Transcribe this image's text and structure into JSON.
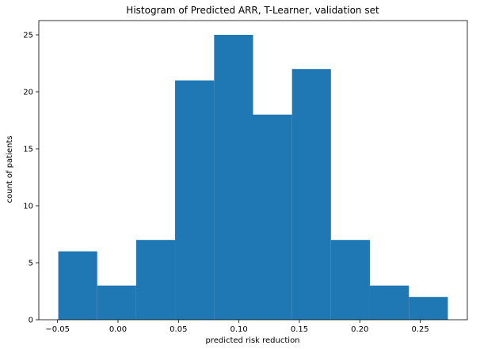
{
  "chart_data": {
    "type": "bar",
    "title": "Histogram of Predicted ARR, T-Learner, validation set",
    "xlabel": "predicted risk reduction",
    "ylabel": "count of patients",
    "bin_edges": [
      -0.0494,
      -0.0172,
      0.015,
      0.0472,
      0.0795,
      0.1117,
      0.1439,
      0.1761,
      0.2083,
      0.2406,
      0.2728
    ],
    "values": [
      6,
      3,
      7,
      21,
      25,
      18,
      22,
      7,
      3,
      2
    ],
    "xlim": [
      -0.0655,
      0.2889
    ],
    "ylim": [
      0,
      26.25
    ],
    "x_ticks": [
      -0.05,
      0.0,
      0.05,
      0.1,
      0.15,
      0.2,
      0.25
    ],
    "x_tick_labels": [
      "−0.05",
      "0.00",
      "0.05",
      "0.10",
      "0.15",
      "0.20",
      "0.25"
    ],
    "y_ticks": [
      0,
      5,
      10,
      15,
      20,
      25
    ],
    "y_tick_labels": [
      "0",
      "5",
      "10",
      "15",
      "20",
      "25"
    ],
    "bar_color": "#1f77b4",
    "grid": false,
    "legend": "none"
  }
}
